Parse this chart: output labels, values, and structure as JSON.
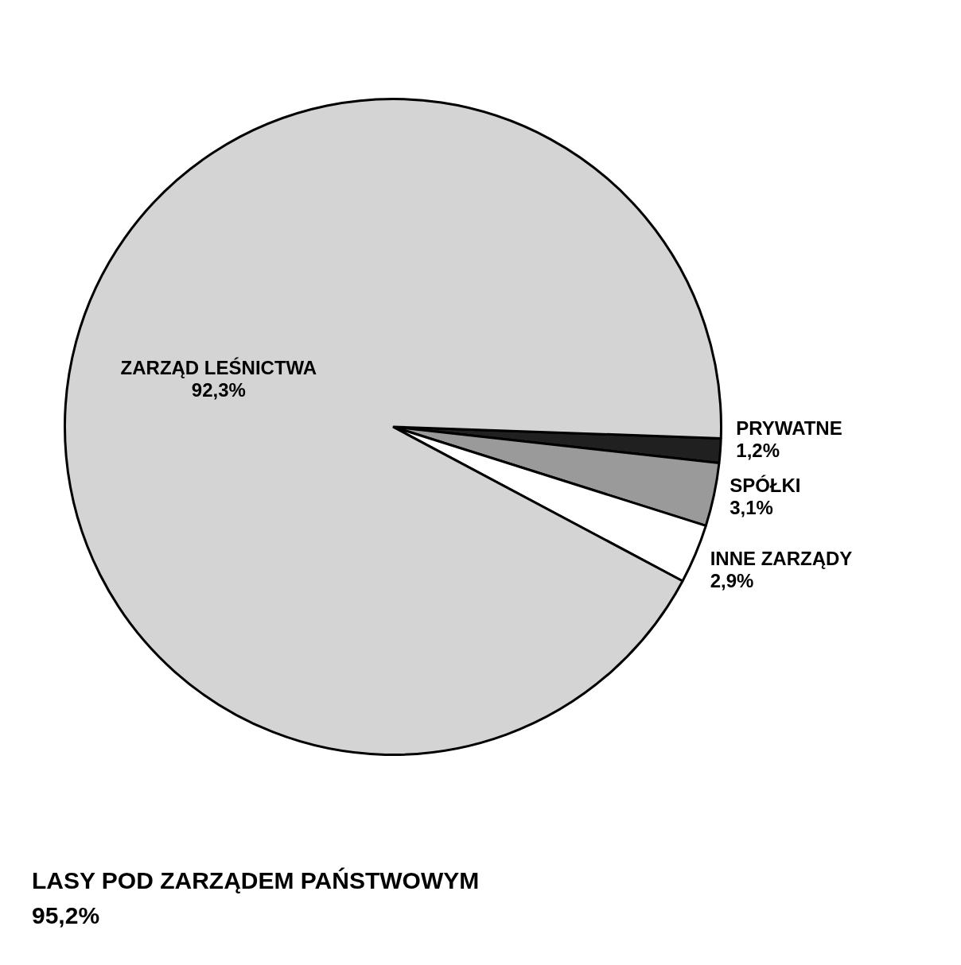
{
  "chart_data": {
    "type": "pie",
    "categories": [
      "PRYWATNE",
      "SPÓŁKI",
      "INNE ZARZĄDY",
      "ZARZĄD LEŚNICTWA"
    ],
    "values": [
      1.2,
      3.1,
      2.9,
      92.3
    ],
    "value_labels": [
      "1,2%",
      "3,1%",
      "2,9%",
      "92,3%"
    ],
    "colors": [
      "#202020",
      "#9a9a9a",
      "#ffffff",
      "#d4d4d4"
    ],
    "legend": false,
    "annotations": [
      "LASY POD ZARZĄDEM PAŃSTWOWYM",
      "95,2%"
    ]
  }
}
